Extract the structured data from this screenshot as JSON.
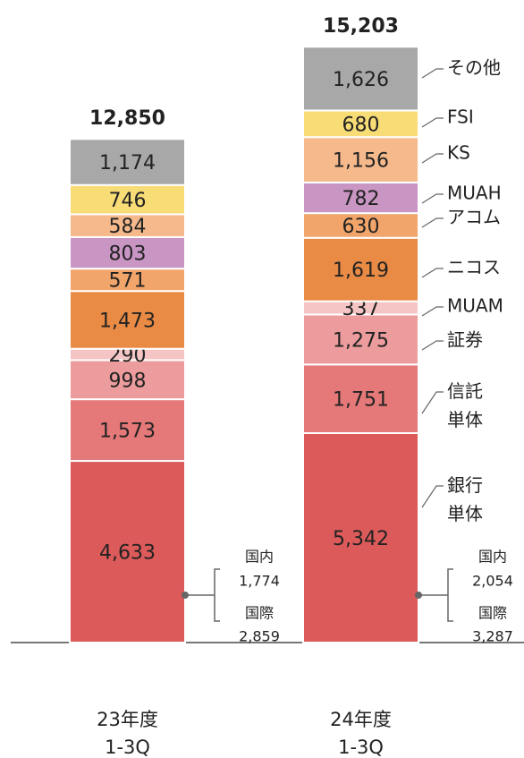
{
  "chart_data": {
    "type": "stacked_bar",
    "categories": [
      "23年度\n1-3Q",
      "24年度\n1-3Q"
    ],
    "series": [
      {
        "name": "銀行\n単体",
        "color": "#dc5a5a",
        "values": [
          4633,
          5342
        ],
        "value_labels": [
          "4,633",
          "5,342"
        ]
      },
      {
        "name": "信託\n単体",
        "color": "#e57878",
        "values": [
          1573,
          1751
        ],
        "value_labels": [
          "1,573",
          "1,751"
        ]
      },
      {
        "name": "証券",
        "color": "#ec9c9c",
        "values": [
          998,
          1275
        ],
        "value_labels": [
          "998",
          "1,275"
        ]
      },
      {
        "name": "MUAM",
        "color": "#f5c4c4",
        "values": [
          290,
          337
        ],
        "value_labels": [
          "290",
          "337"
        ]
      },
      {
        "name": "ニコス",
        "color": "#ea8b45",
        "values": [
          1473,
          1619
        ],
        "value_labels": [
          "1,473",
          "1,619"
        ]
      },
      {
        "name": "アコム",
        "color": "#f1a56a",
        "values": [
          571,
          630
        ],
        "value_labels": [
          "571",
          "630"
        ]
      },
      {
        "name": "MUAH",
        "color": "#c995c3",
        "values": [
          803,
          782
        ],
        "value_labels": [
          "803",
          "782"
        ]
      },
      {
        "name": "KS",
        "color": "#f5b98c",
        "values": [
          584,
          1156
        ],
        "value_labels": [
          "584",
          "1,156"
        ]
      },
      {
        "name": "FSI",
        "color": "#f8dc76",
        "values": [
          746,
          680
        ],
        "value_labels": [
          "746",
          "680"
        ]
      },
      {
        "name": "その他",
        "color": "#a8a8a8",
        "values": [
          1174,
          1626
        ],
        "value_labels": [
          "1,174",
          "1,626"
        ]
      }
    ],
    "totals": [
      12850,
      15203
    ],
    "total_labels": [
      "12,850",
      "15,203"
    ],
    "breakdown": [
      [
        {
          "name": "国内",
          "value": 1774,
          "label": "1,774"
        },
        {
          "name": "国際",
          "value": 2859,
          "label": "2,859"
        }
      ],
      [
        {
          "name": "国内",
          "value": 2054,
          "label": "2,054"
        },
        {
          "name": "国際",
          "value": 3287,
          "label": "3,287"
        }
      ]
    ]
  }
}
